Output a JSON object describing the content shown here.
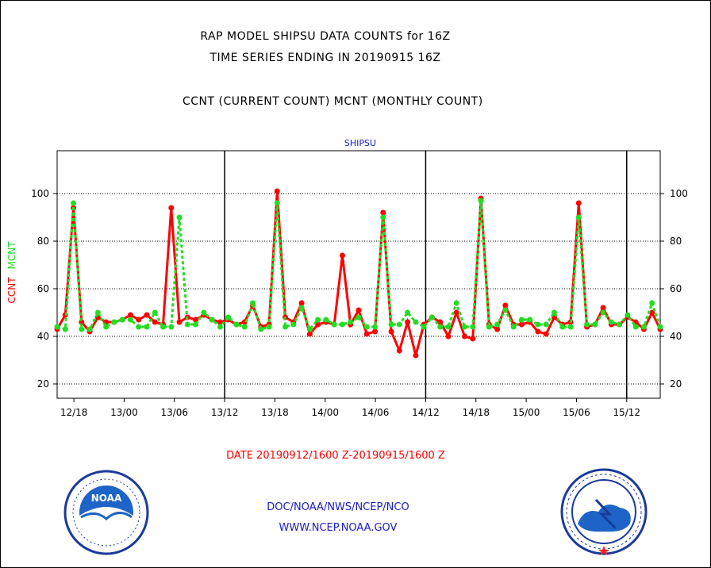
{
  "header": {
    "line1": "RAP MODEL SHIPSU DATA COUNTS for 16Z",
    "line2": "TIME SERIES ENDING IN 20190915 16Z",
    "line3": "CCNT (CURRENT COUNT) MCNT (MONTHLY COUNT)"
  },
  "footer": {
    "org": "DOC/NOAA/NWS/NCEP/NCO",
    "url": "WWW.NCEP.NOAA.GOV"
  },
  "colors": {
    "ccnt": "#ff0000",
    "mcnt": "#22dd22",
    "footer": "#1a1acc",
    "title": "#1a1acc"
  },
  "chart_data": {
    "type": "line",
    "title": "SHIPSU",
    "xlabel": "DATE 20190912/1600 Z-20190915/1600 Z",
    "ylabel_ccnt": "CCNT",
    "ylabel_mcnt": "MCNT",
    "ylim": [
      14,
      118
    ],
    "yticks": [
      20,
      40,
      60,
      80,
      100
    ],
    "x_hours_range": [
      0,
      72
    ],
    "xtick_labels": [
      "12/18",
      "13/00",
      "13/06",
      "13/12",
      "13/18",
      "14/00",
      "14/06",
      "14/12",
      "14/18",
      "15/00",
      "15/06",
      "15/12"
    ],
    "grid": "horizontal dotted",
    "series": [
      {
        "name": "CCNT",
        "values": [
          43,
          49,
          94,
          46,
          42,
          48,
          46,
          46,
          47,
          49,
          47,
          49,
          46,
          45,
          94,
          46,
          48,
          47,
          49,
          47,
          46,
          47,
          45,
          46,
          53,
          44,
          45,
          101,
          48,
          46,
          54,
          41,
          45,
          46,
          45,
          74,
          45,
          51,
          41,
          42,
          92,
          42,
          34,
          46,
          32,
          45,
          48,
          46,
          40,
          50,
          40,
          39,
          98,
          45,
          43,
          53,
          45,
          45,
          46,
          42,
          41,
          48,
          45,
          46,
          96,
          44,
          45,
          52,
          45,
          45,
          48,
          46,
          43,
          50,
          43
        ]
      },
      {
        "name": "MCNT",
        "values": [
          44,
          43,
          96,
          43,
          43,
          50,
          44,
          46,
          47,
          47,
          44,
          44,
          50,
          44,
          44,
          90,
          45,
          45,
          50,
          47,
          44,
          48,
          45,
          44,
          54,
          43,
          44,
          96,
          44,
          45,
          52,
          43,
          47,
          47,
          45,
          45,
          46,
          48,
          44,
          44,
          90,
          45,
          45,
          50,
          46,
          44,
          48,
          44,
          44,
          54,
          44,
          44,
          97,
          44,
          45,
          51,
          44,
          47,
          47,
          45,
          45,
          50,
          44,
          44,
          90,
          45,
          45,
          50,
          46,
          45,
          49,
          44,
          44,
          54,
          44
        ]
      }
    ]
  }
}
